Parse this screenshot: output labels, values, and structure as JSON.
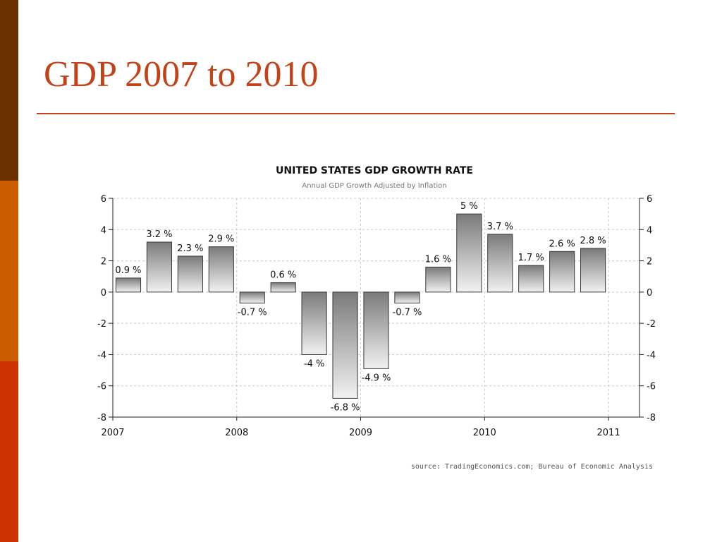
{
  "slide": {
    "title": "GDP 2007 to 2010",
    "stripe_colors": [
      "#6b3100",
      "#cc5c00",
      "#cc3300"
    ],
    "title_color": "#c0431a",
    "rule_color": "#c0431a"
  },
  "chart_data": {
    "type": "bar",
    "title": "UNITED STATES GDP GROWTH RATE",
    "subtitle": "Annual GDP Growth Adjusted by Inflation",
    "source": "source: TradingEconomics.com; Bureau of Economic Analysis",
    "x": [
      2007.25,
      2007.5,
      2007.75,
      2008.0,
      2008.25,
      2008.5,
      2008.75,
      2009.0,
      2009.25,
      2009.5,
      2009.75,
      2010.0,
      2010.25,
      2010.5,
      2010.75,
      2011.0
    ],
    "values": [
      0.9,
      3.2,
      2.3,
      2.9,
      -0.7,
      0.6,
      -4,
      -6.8,
      -4.9,
      -0.7,
      1.6,
      5,
      3.7,
      1.7,
      2.6,
      2.8
    ],
    "data_labels": [
      "0.9 %",
      "3.2 %",
      "2.3 %",
      "2.9 %",
      "-0.7 %",
      "0.6 %",
      "-4 %",
      "-6.8 %",
      "-4.9 %",
      "-0.7 %",
      "1.6 %",
      "5 %",
      "3.7 %",
      "1.7 %",
      "2.6 %",
      "2.8 %"
    ],
    "xticks": [
      2007,
      2008,
      2009,
      2010,
      2011
    ],
    "xtick_labels": [
      "2007",
      "2008",
      "2009",
      "2010",
      "2011"
    ],
    "xlim": [
      2007,
      2011.25
    ],
    "ylim": [
      -8,
      6
    ],
    "yticks": [
      -8,
      -6,
      -4,
      -2,
      0,
      2,
      4,
      6
    ],
    "ytick_labels": [
      "-8",
      "-6",
      "-4",
      "-2",
      "0",
      "2",
      "4",
      "6"
    ],
    "grid": true,
    "axes": "left and right",
    "bar_color_top": "#7a7a7a",
    "bar_color_bottom": "#f2f2f2"
  }
}
